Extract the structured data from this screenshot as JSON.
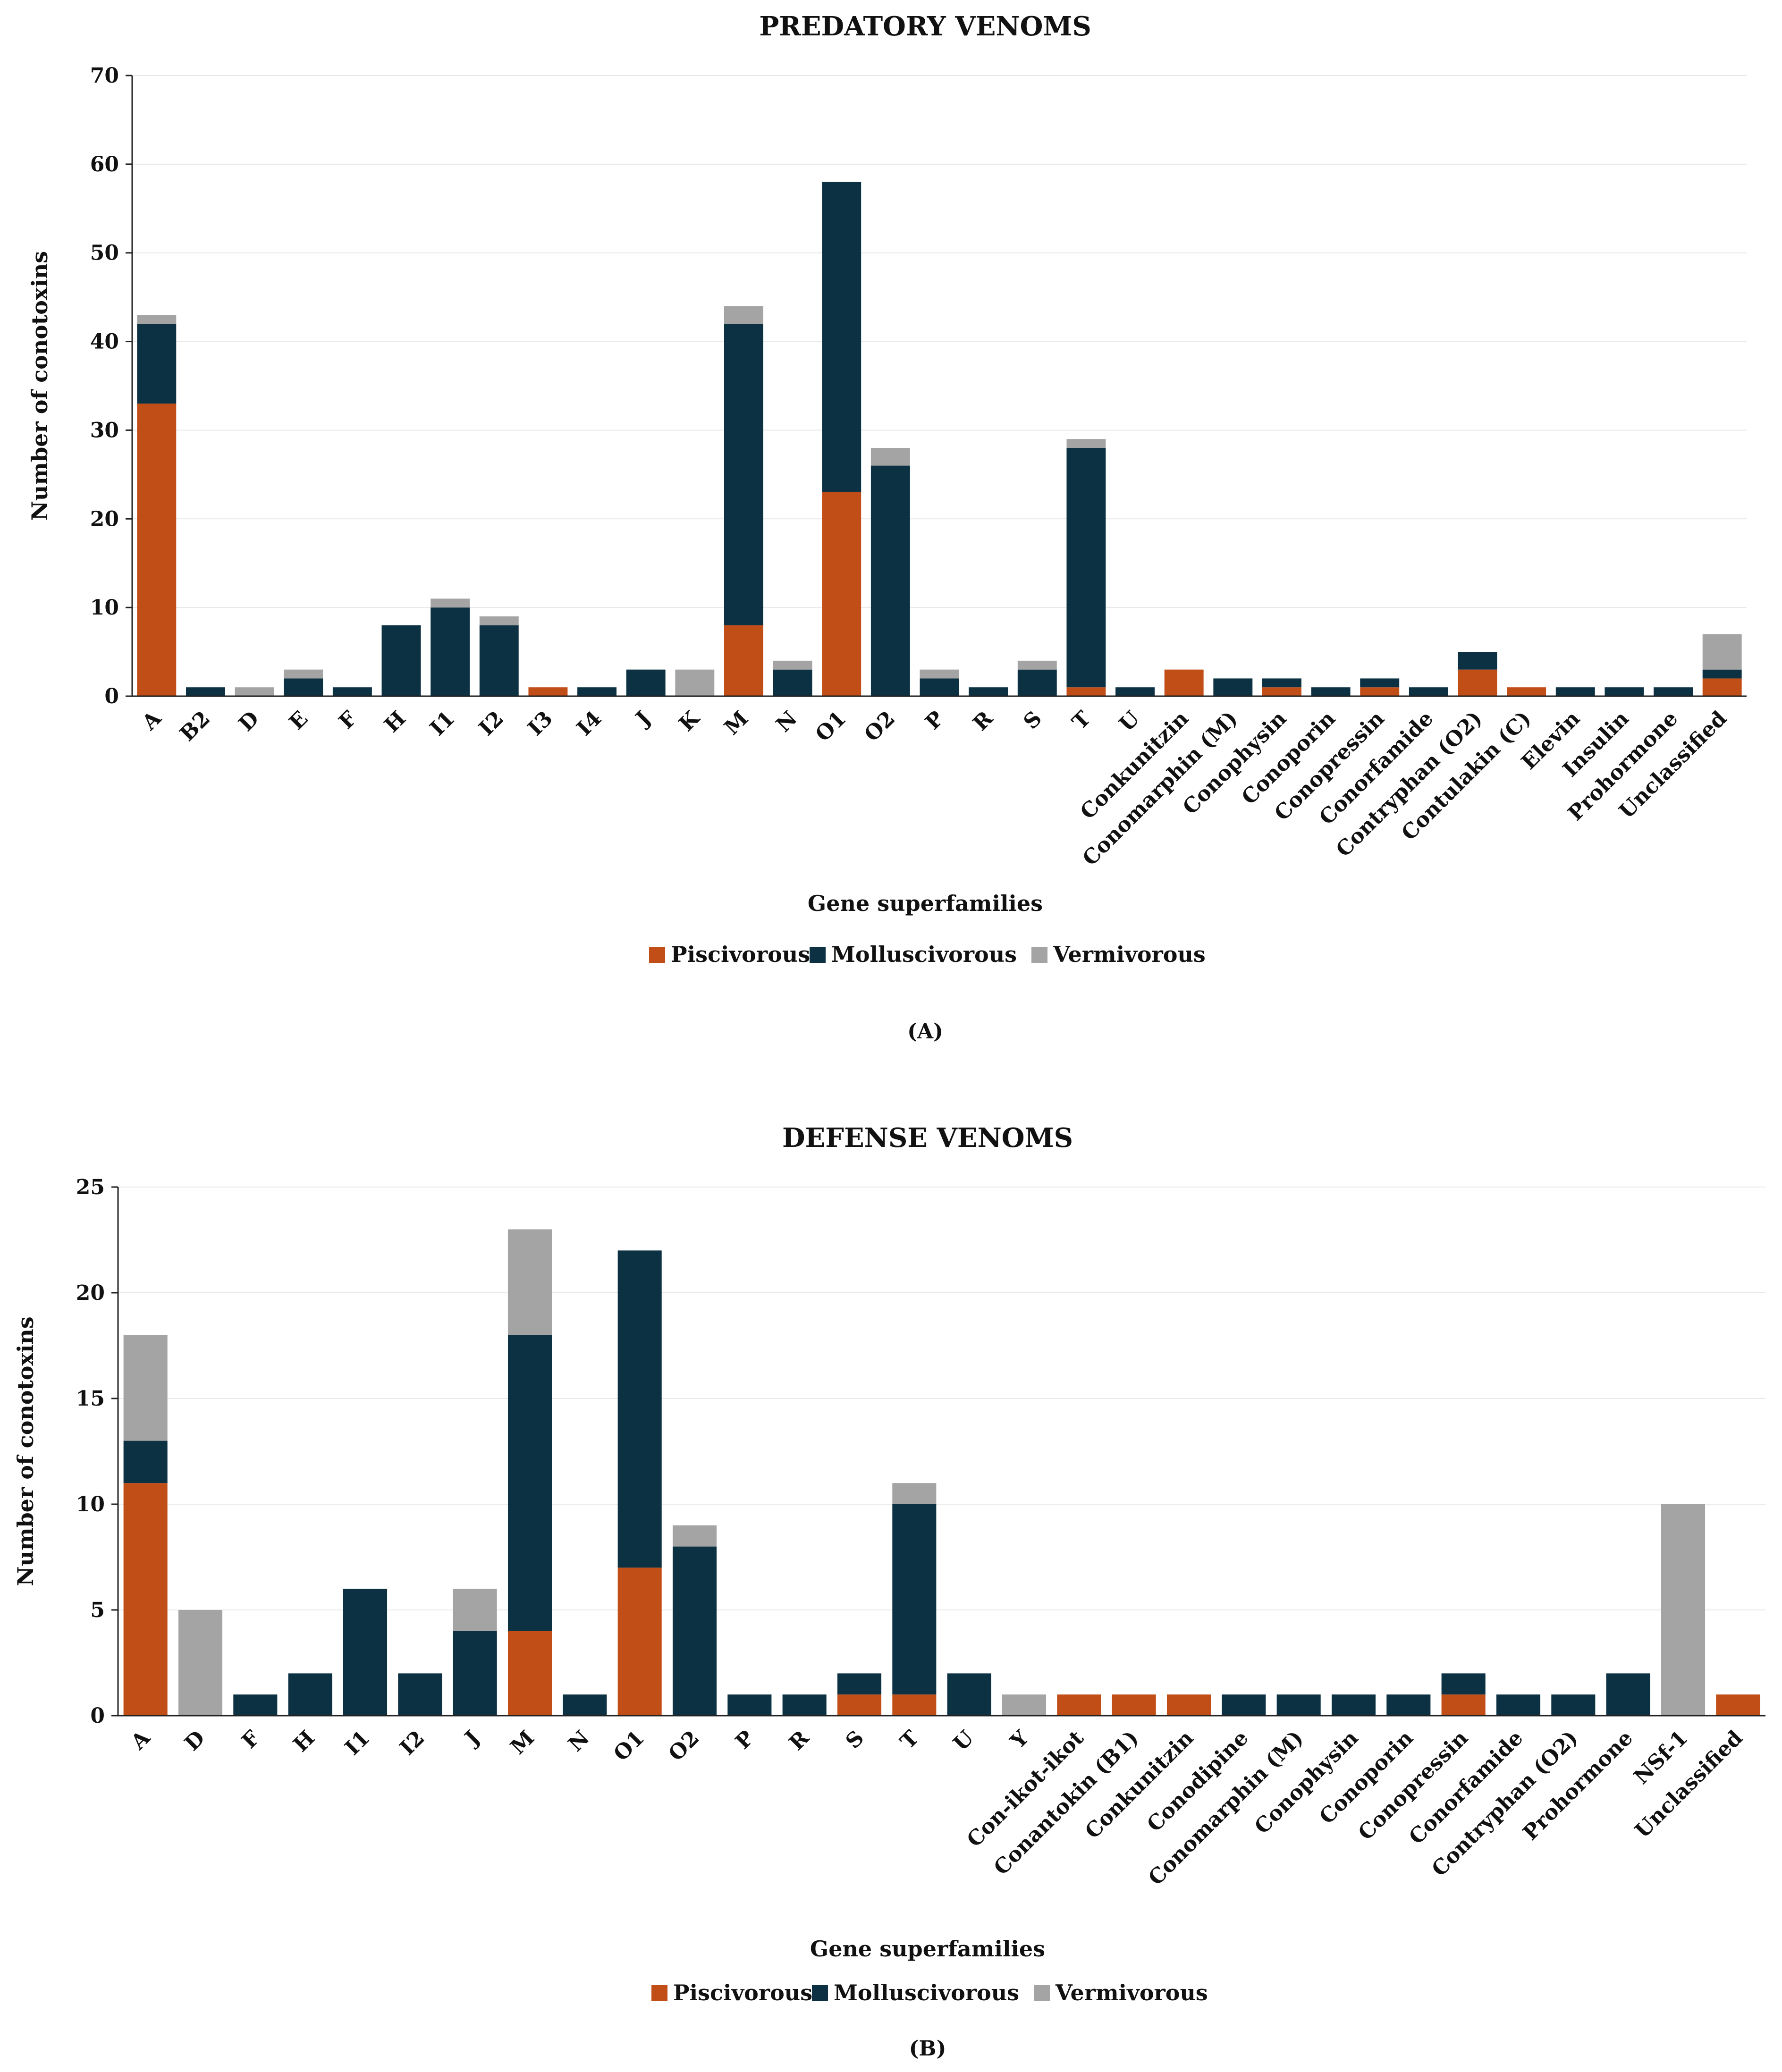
{
  "colors": {
    "Piscivorous": "#c14d17",
    "Molluscivorous": "#0b3142",
    "Vermivorous": "#a4a4a4"
  },
  "chart_data": [
    {
      "type": "bar",
      "stacked": true,
      "title": "PREDATORY VENOMS",
      "xlabel": "Gene superfamilies",
      "ylabel": "Number of conotoxins",
      "ylim": [
        0,
        70
      ],
      "yticks": [
        0,
        10,
        20,
        30,
        40,
        50,
        60,
        70
      ],
      "panel_label": "(A)",
      "categories": [
        "A",
        "B2",
        "D",
        "E",
        "F",
        "H",
        "I1",
        "I2",
        "I3",
        "I4",
        "J",
        "K",
        "M",
        "N",
        "O1",
        "O2",
        "P",
        "R",
        "S",
        "T",
        "U",
        "Conkunitzin",
        "Conomarphin (M)",
        "Conophysin",
        "Conoporin",
        "Conopressin",
        "Conorfamide",
        "Contryphan (O2)",
        "Contulakin (C)",
        "Elevin",
        "Insulin",
        "Prohormone",
        "Unclassified"
      ],
      "series": [
        {
          "name": "Piscivorous",
          "values": [
            33,
            0,
            0,
            0,
            0,
            0,
            0,
            0,
            1,
            0,
            0,
            0,
            8,
            0,
            23,
            0,
            0,
            0,
            0,
            1,
            0,
            3,
            0,
            1,
            0,
            1,
            0,
            3,
            1,
            0,
            0,
            0,
            2
          ]
        },
        {
          "name": "Molluscivorous",
          "values": [
            9,
            1,
            0,
            2,
            1,
            8,
            10,
            8,
            0,
            1,
            3,
            0,
            34,
            3,
            35,
            26,
            2,
            1,
            3,
            27,
            1,
            0,
            2,
            1,
            1,
            1,
            1,
            2,
            0,
            1,
            1,
            1,
            1
          ]
        },
        {
          "name": "Vermivorous",
          "values": [
            1,
            0,
            1,
            1,
            0,
            0,
            1,
            1,
            0,
            0,
            0,
            3,
            2,
            1,
            0,
            2,
            1,
            0,
            1,
            1,
            0,
            0,
            0,
            0,
            0,
            0,
            0,
            0,
            0,
            0,
            0,
            0,
            4
          ]
        }
      ],
      "legend": [
        "Piscivorous",
        "Molluscivorous",
        "Vermivorous"
      ]
    },
    {
      "type": "bar",
      "stacked": true,
      "title": "DEFENSE VENOMS",
      "xlabel": "Gene superfamilies",
      "ylabel": "Number of conotoxins",
      "ylim": [
        0,
        25
      ],
      "yticks": [
        0,
        5,
        10,
        15,
        20,
        25
      ],
      "panel_label": "(B)",
      "categories": [
        "A",
        "D",
        "F",
        "H",
        "I1",
        "I2",
        "J",
        "M",
        "N",
        "O1",
        "O2",
        "P",
        "R",
        "S",
        "T",
        "U",
        "Y",
        "Con-ikot-ikot",
        "Conantokin (B1)",
        "Conkunitzin",
        "Conodipine",
        "Conomarphin (M)",
        "Conophysin",
        "Conoporin",
        "Conopressin",
        "Conorfamide",
        "Contryphan (O2)",
        "Prohormone",
        "NSf-1",
        "Unclassified"
      ],
      "series": [
        {
          "name": "Piscivorous",
          "values": [
            11,
            0,
            0,
            0,
            0,
            0,
            0,
            4,
            0,
            7,
            0,
            0,
            0,
            1,
            1,
            0,
            0,
            1,
            1,
            1,
            0,
            0,
            0,
            0,
            1,
            0,
            0,
            0,
            0,
            1
          ]
        },
        {
          "name": "Molluscivorous",
          "values": [
            2,
            0,
            1,
            2,
            6,
            2,
            4,
            14,
            1,
            15,
            8,
            1,
            1,
            1,
            9,
            2,
            0,
            0,
            0,
            0,
            1,
            1,
            1,
            1,
            1,
            1,
            1,
            2,
            0,
            0
          ]
        },
        {
          "name": "Vermivorous",
          "values": [
            5,
            5,
            0,
            0,
            0,
            0,
            2,
            5,
            0,
            0,
            1,
            0,
            0,
            0,
            1,
            0,
            1,
            0,
            0,
            0,
            0,
            0,
            0,
            0,
            0,
            0,
            0,
            0,
            10,
            0
          ]
        }
      ],
      "legend": [
        "Piscivorous",
        "Molluscivorous",
        "Vermivorous"
      ]
    }
  ]
}
